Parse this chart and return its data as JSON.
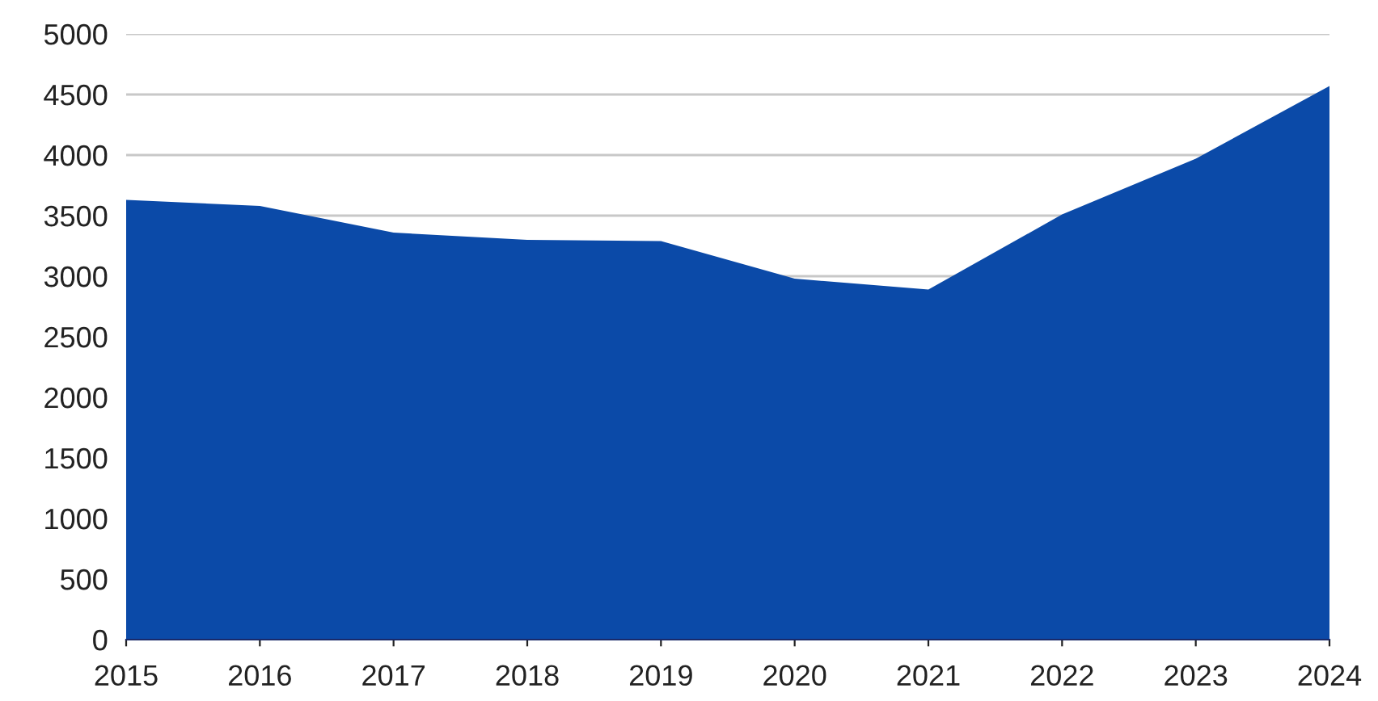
{
  "chart_data": {
    "type": "area",
    "categories": [
      "2015",
      "2016",
      "2017",
      "2018",
      "2019",
      "2020",
      "2021",
      "2022",
      "2023",
      "2024"
    ],
    "values": [
      3630,
      3580,
      3360,
      3300,
      3290,
      2980,
      2890,
      3510,
      3970,
      4570
    ],
    "color": "#0b4aa8",
    "ylim": [
      0,
      5000
    ],
    "yticks": [
      0,
      500,
      1000,
      1500,
      2000,
      2500,
      3000,
      3500,
      4000,
      4500,
      5000
    ],
    "grid": "y"
  }
}
